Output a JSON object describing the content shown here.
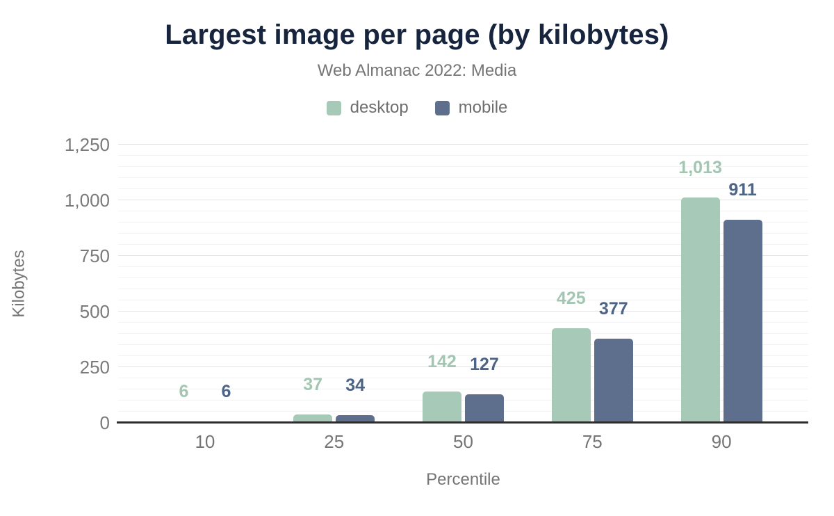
{
  "chart_data": {
    "type": "bar",
    "title": "Largest image per page (by kilobytes)",
    "subtitle": "Web Almanac 2022: Media",
    "categories": [
      "10",
      "25",
      "50",
      "75",
      "90"
    ],
    "series": [
      {
        "name": "desktop",
        "color": "#a7c9b8",
        "label_color": "#a2c6b2",
        "values": [
          6,
          37,
          142,
          425,
          1013
        ],
        "value_labels": [
          "6",
          "37",
          "142",
          "425",
          "1,013"
        ]
      },
      {
        "name": "mobile",
        "color": "#5d6f8d",
        "label_color": "#4e6486",
        "values": [
          6,
          34,
          127,
          377,
          911
        ],
        "value_labels": [
          "6",
          "34",
          "127",
          "377",
          "911"
        ]
      }
    ],
    "xlabel": "Percentile",
    "ylabel": "Kilobytes",
    "ylim": [
      0,
      1250
    ],
    "yticks": [
      {
        "value": 0,
        "label": "0"
      },
      {
        "value": 250,
        "label": "250"
      },
      {
        "value": 500,
        "label": "500"
      },
      {
        "value": 750,
        "label": "750"
      },
      {
        "value": 1000,
        "label": "1,000"
      },
      {
        "value": 1250,
        "label": "1,250"
      }
    ],
    "minor_tick_step": 50,
    "grid": true,
    "legend_position": "top"
  },
  "colors": {
    "title": "#16243d",
    "subtitle": "#757575",
    "axis_text": "#7a7a7a",
    "legend_text": "#6e6e6e",
    "grid_major": "#e3e3e3",
    "grid_minor": "#f3f3f3",
    "axis_line": "#2d2d2d",
    "background": "#ffffff"
  }
}
